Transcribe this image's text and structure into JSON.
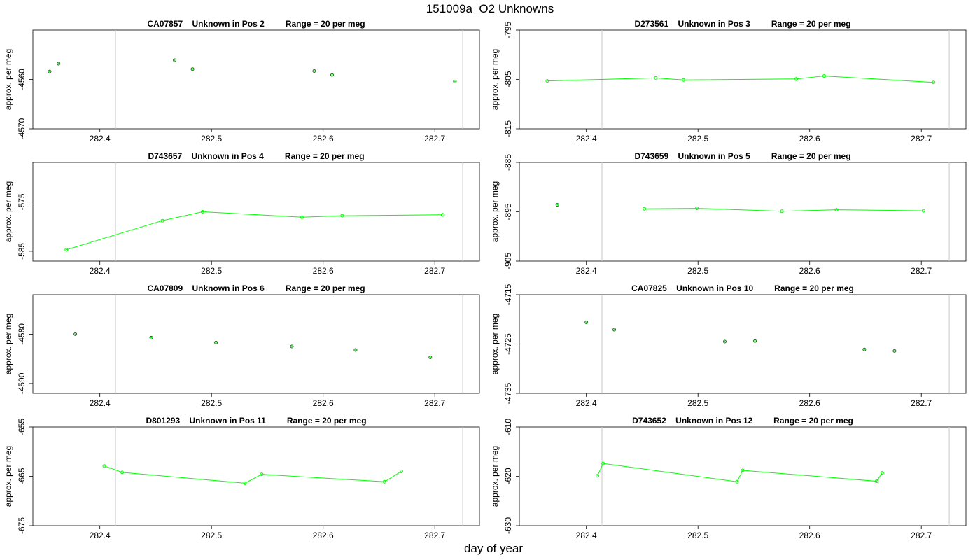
{
  "page": {
    "title": "151009a  O2 Unknowns",
    "x_axis_label": "day of year"
  },
  "colors": {
    "series": "#00ff00",
    "vline": "#c8c8c8",
    "axis": "#000000"
  },
  "chart_data": [
    {
      "type": "scatter",
      "title": "CA07857    Unknown in Pos 2         Range = 20 per meg",
      "ylabel": "approx. per meg",
      "xlim": [
        282.34,
        282.74
      ],
      "ylim": [
        -4570,
        -4550
      ],
      "yticks": [
        -4570,
        -4560
      ],
      "xticks": [
        282.4,
        282.5,
        282.6,
        282.7
      ],
      "vlines": [
        282.414,
        282.725
      ],
      "connected": false,
      "points": [
        [
          282.355,
          -4558.4
        ],
        [
          282.363,
          -4556.8
        ],
        [
          282.467,
          -4556.1
        ],
        [
          282.483,
          -4557.9
        ],
        [
          282.592,
          -4558.3
        ],
        [
          282.608,
          -4559.1
        ],
        [
          282.718,
          -4560.4
        ]
      ]
    },
    {
      "type": "line",
      "title": "D273561    Unknown in Pos 3         Range = 20 per meg",
      "ylabel": "approx. per meg",
      "xlim": [
        282.34,
        282.74
      ],
      "ylim": [
        -815,
        -795
      ],
      "yticks": [
        -815,
        -805,
        -795
      ],
      "xticks": [
        282.4,
        282.5,
        282.6,
        282.7
      ],
      "vlines": [
        282.414,
        282.725
      ],
      "connected": true,
      "points": [
        [
          282.365,
          -805.3
        ],
        [
          282.462,
          -804.7
        ],
        [
          282.487,
          -805.1
        ],
        [
          282.588,
          -804.9
        ],
        [
          282.613,
          -804.3
        ],
        [
          282.711,
          -805.6
        ]
      ]
    },
    {
      "type": "line",
      "title": "D743657    Unknown in Pos 4         Range = 20 per meg",
      "ylabel": "approx. per meg",
      "xlim": [
        282.34,
        282.74
      ],
      "ylim": [
        -587,
        -567
      ],
      "yticks": [
        -585,
        -575
      ],
      "xticks": [
        282.4,
        282.5,
        282.6,
        282.7
      ],
      "vlines": [
        282.414,
        282.725
      ],
      "connected": true,
      "points": [
        [
          282.37,
          -584.7
        ],
        [
          282.456,
          -578.8
        ],
        [
          282.492,
          -577.0
        ],
        [
          282.581,
          -578.1
        ],
        [
          282.617,
          -577.8
        ],
        [
          282.707,
          -577.6
        ]
      ]
    },
    {
      "type": "line",
      "title": "D743659    Unknown in Pos 5         Range = 20 per meg",
      "ylabel": "approx. per meg",
      "xlim": [
        282.34,
        282.74
      ],
      "ylim": [
        -905,
        -885
      ],
      "yticks": [
        -905,
        -895,
        -885
      ],
      "xticks": [
        282.4,
        282.5,
        282.6,
        282.7
      ],
      "vlines": [
        282.414,
        282.725
      ],
      "connected": true,
      "first_point_separate": true,
      "points": [
        [
          282.374,
          -893.6
        ],
        [
          282.452,
          -894.4
        ],
        [
          282.499,
          -894.3
        ],
        [
          282.575,
          -894.9
        ],
        [
          282.624,
          -894.6
        ],
        [
          282.702,
          -894.8
        ]
      ]
    },
    {
      "type": "scatter",
      "title": "CA07809    Unknown in Pos 6         Range = 20 per meg",
      "ylabel": "approx. per meg",
      "xlim": [
        282.34,
        282.74
      ],
      "ylim": [
        -4592,
        -4572
      ],
      "yticks": [
        -4590,
        -4580
      ],
      "xticks": [
        282.4,
        282.5,
        282.6,
        282.7
      ],
      "vlines": [
        282.414,
        282.725
      ],
      "connected": false,
      "points": [
        [
          282.378,
          -4580.0
        ],
        [
          282.446,
          -4580.7
        ],
        [
          282.504,
          -4581.7
        ],
        [
          282.572,
          -4582.5
        ],
        [
          282.629,
          -4583.2
        ],
        [
          282.696,
          -4584.7
        ]
      ]
    },
    {
      "type": "scatter",
      "title": "CA07825    Unknown in Pos 10         Range = 20 per meg",
      "ylabel": "approx. per meg",
      "xlim": [
        282.34,
        282.74
      ],
      "ylim": [
        -4735,
        -4715
      ],
      "yticks": [
        -4735,
        -4725,
        -4715
      ],
      "xticks": [
        282.4,
        282.5,
        282.6,
        282.7
      ],
      "vlines": [
        282.414,
        282.725
      ],
      "connected": false,
      "points": [
        [
          282.4,
          -4720.6
        ],
        [
          282.425,
          -4722.1
        ],
        [
          282.524,
          -4724.5
        ],
        [
          282.551,
          -4724.4
        ],
        [
          282.649,
          -4726.1
        ],
        [
          282.676,
          -4726.4
        ]
      ]
    },
    {
      "type": "line",
      "title": "D801293    Unknown in Pos 11         Range = 20 per meg",
      "ylabel": "approx. per meg",
      "xlim": [
        282.34,
        282.74
      ],
      "ylim": [
        -675,
        -655
      ],
      "yticks": [
        -675,
        -665,
        -655
      ],
      "xticks": [
        282.4,
        282.5,
        282.6,
        282.7
      ],
      "vlines": [
        282.414,
        282.725
      ],
      "connected": true,
      "points": [
        [
          282.404,
          -662.9
        ],
        [
          282.42,
          -664.2
        ],
        [
          282.53,
          -666.4
        ],
        [
          282.545,
          -664.6
        ],
        [
          282.655,
          -666.1
        ],
        [
          282.67,
          -664.0
        ]
      ]
    },
    {
      "type": "line",
      "title": "D743652    Unknown in Pos 12         Range = 20 per meg",
      "ylabel": "approx. per meg",
      "xlim": [
        282.34,
        282.74
      ],
      "ylim": [
        -630,
        -610
      ],
      "yticks": [
        -630,
        -620,
        -610
      ],
      "xticks": [
        282.4,
        282.5,
        282.6,
        282.7
      ],
      "vlines": [
        282.414,
        282.725
      ],
      "connected": true,
      "points": [
        [
          282.41,
          -619.9
        ],
        [
          282.415,
          -617.4
        ],
        [
          282.535,
          -621.1
        ],
        [
          282.54,
          -618.8
        ],
        [
          282.66,
          -621.0
        ],
        [
          282.665,
          -619.3
        ]
      ]
    }
  ]
}
